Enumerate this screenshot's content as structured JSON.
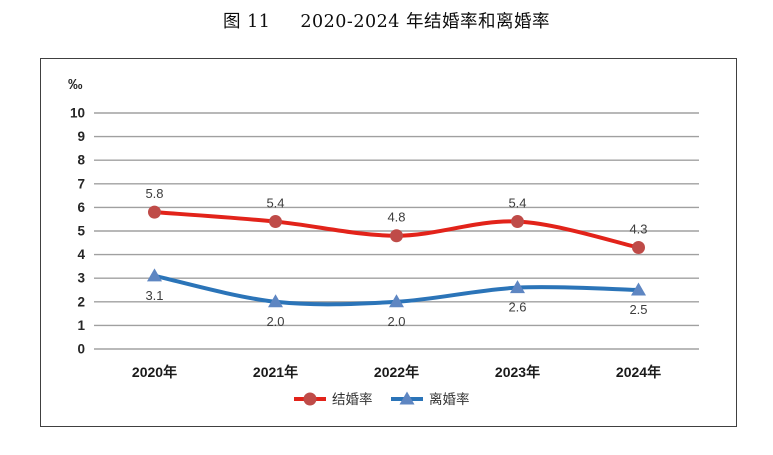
{
  "title": {
    "figure_label": "图 11",
    "text": "2020-2024 年结婚率和离婚率"
  },
  "chart_data": {
    "type": "line",
    "unit_label": "‰",
    "categories": [
      "2020年",
      "2021年",
      "2022年",
      "2023年",
      "2024年"
    ],
    "series": [
      {
        "name": "结婚率",
        "values": [
          5.8,
          5.4,
          4.8,
          5.4,
          4.3
        ],
        "labels": [
          "5.8",
          "5.4",
          "4.8",
          "5.4",
          "4.3"
        ],
        "marker": "circle",
        "line_color": "#e2231a",
        "marker_color": "#bf4b48",
        "label_position": "above"
      },
      {
        "name": "离婚率",
        "values": [
          3.1,
          2.0,
          2.0,
          2.6,
          2.5
        ],
        "labels": [
          "3.1",
          "2.0",
          "2.0",
          "2.6",
          "2.5"
        ],
        "marker": "triangle",
        "line_color": "#2b74b8",
        "marker_color": "#5e86c2",
        "label_position": "below"
      }
    ],
    "ylim": [
      0,
      10
    ],
    "y_ticks": [
      0,
      1,
      2,
      3,
      4,
      5,
      6,
      7,
      8,
      9,
      10
    ],
    "grid": true,
    "smoothed": true,
    "legend_position": "bottom",
    "legend_entries": [
      "结婚率",
      "离婚率"
    ],
    "colors": {
      "gridline": "#a0a0a0",
      "zero_line": "#b9b9b9",
      "axis_text": "#262626",
      "data_label_text": "#3d3d3d",
      "category_text": "#1a1a1a",
      "frame_border": "#404040"
    }
  }
}
